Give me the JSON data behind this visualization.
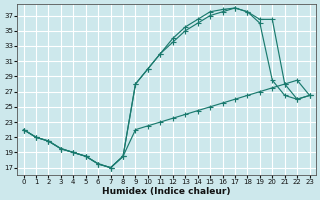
{
  "xlabel": "Humidex (Indice chaleur)",
  "bg_color": "#cde8ec",
  "grid_color": "#ffffff",
  "line_color": "#1a7a6e",
  "xlim": [
    -0.5,
    23.5
  ],
  "ylim": [
    16,
    38.5
  ],
  "xticks": [
    0,
    1,
    2,
    3,
    4,
    5,
    6,
    7,
    8,
    9,
    10,
    11,
    12,
    13,
    14,
    15,
    16,
    17,
    18,
    19,
    20,
    21,
    22,
    23
  ],
  "yticks": [
    17,
    19,
    21,
    23,
    25,
    27,
    29,
    31,
    33,
    35,
    37
  ],
  "series1_x": [
    0,
    1,
    2,
    3,
    4,
    5,
    6,
    7,
    8,
    9,
    10,
    11,
    12,
    13,
    14,
    15,
    16,
    17,
    18,
    19,
    20,
    21,
    22,
    23
  ],
  "series1_y": [
    22,
    21,
    20.5,
    19.5,
    19.0,
    18.5,
    17.5,
    17.0,
    18.5,
    28.0,
    30.0,
    32.0,
    34.0,
    35.5,
    36.5,
    37.5,
    37.8,
    38.0,
    37.5,
    36.5,
    36.5,
    28.0,
    26.0,
    26.5
  ],
  "series2_x": [
    0,
    1,
    2,
    3,
    4,
    5,
    6,
    7,
    8,
    9,
    10,
    11,
    12,
    13,
    14,
    15,
    16,
    17,
    18,
    19,
    20,
    21,
    22,
    23
  ],
  "series2_y": [
    22,
    21,
    20.5,
    19.5,
    19.0,
    18.5,
    17.5,
    17.0,
    18.5,
    28.0,
    30.0,
    32.0,
    33.5,
    35.0,
    36.0,
    37.0,
    37.5,
    38.0,
    37.5,
    36.0,
    28.5,
    26.5,
    26.0,
    26.5
  ],
  "series3_x": [
    0,
    1,
    2,
    3,
    4,
    5,
    6,
    7,
    8,
    9,
    10,
    11,
    12,
    13,
    14,
    15,
    16,
    17,
    18,
    19,
    20,
    21,
    22,
    23
  ],
  "series3_y": [
    22,
    21,
    20.5,
    19.5,
    19.0,
    18.5,
    17.5,
    17.0,
    18.5,
    22.0,
    22.5,
    23.0,
    23.5,
    24.0,
    24.5,
    25.0,
    25.5,
    26.0,
    26.5,
    27.0,
    27.5,
    28.0,
    28.5,
    26.5
  ]
}
